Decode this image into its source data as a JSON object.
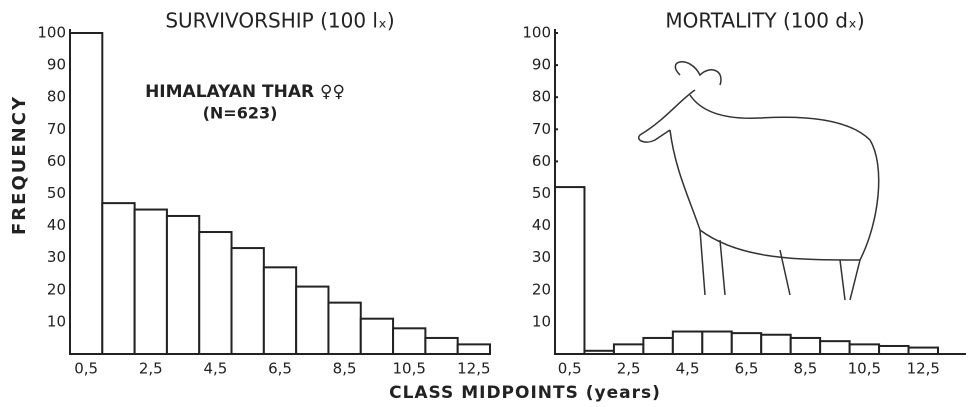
{
  "chart_data": [
    {
      "type": "bar",
      "title": "SURVIVORSHIP (100 lₓ)",
      "ylabel": "FREQUENCY",
      "xlabel": "CLASS MIDPOINTS (years)",
      "annotations": [
        "HIMALAYAN THAR ♀♀",
        "(N=623)"
      ],
      "categories": [
        "0,5",
        null,
        "2,5",
        null,
        "4,5",
        null,
        "6,5",
        null,
        "8,5",
        null,
        "10,5",
        null,
        "12,5"
      ],
      "values": [
        100,
        47,
        45,
        43,
        38,
        33,
        27,
        21,
        16,
        11,
        8,
        5,
        3
      ],
      "color": "#ffffff",
      "ylim": [
        0,
        100
      ],
      "yticks": [
        10,
        20,
        30,
        40,
        50,
        60,
        70,
        80,
        90,
        100
      ]
    },
    {
      "type": "bar",
      "title": "MORTALITY (100 dₓ)",
      "categories": [
        "0,5",
        null,
        "2,5",
        null,
        "4,5",
        null,
        "6,5",
        null,
        "8,5",
        null,
        "10,5",
        null,
        "12,5"
      ],
      "values": [
        52,
        1,
        3,
        5,
        7,
        7,
        6.5,
        6,
        5,
        4,
        3,
        2.5,
        2
      ],
      "color": "#ffffff",
      "ylim": [
        0,
        100
      ],
      "yticks": [
        10,
        20,
        30,
        40,
        50,
        60,
        70,
        80,
        90,
        100
      ]
    }
  ]
}
